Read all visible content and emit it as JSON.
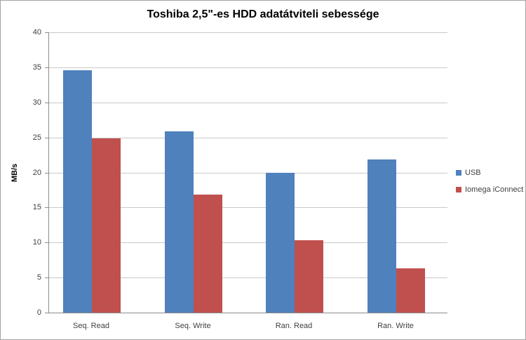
{
  "chart_data": {
    "type": "bar",
    "title": "Toshiba 2,5\"-es HDD adatátviteli sebessége",
    "categories": [
      "Seq. Read",
      "Seq. Write",
      "Ran. Read",
      "Ran. Write"
    ],
    "series": [
      {
        "name": "USB",
        "color": "#4F81BD",
        "values": [
          34.6,
          25.9,
          20.0,
          21.9
        ]
      },
      {
        "name": "Iomega iConnect",
        "color": "#C0504D",
        "values": [
          24.9,
          16.8,
          10.3,
          6.3
        ]
      }
    ],
    "xlabel": "",
    "ylabel": "MB/s",
    "ylim": [
      0,
      40
    ],
    "yticks": [
      0,
      5,
      10,
      15,
      20,
      25,
      30,
      35,
      40
    ],
    "grid": true,
    "legend_position": "right"
  },
  "colors": {
    "series_usb": "#4F81BD",
    "series_iconnect": "#C0504D",
    "gridline": "#c9c9c9",
    "axis": "#8c8c8c",
    "text": "#3f3f3f",
    "frame_border": "#a3a3a3"
  }
}
